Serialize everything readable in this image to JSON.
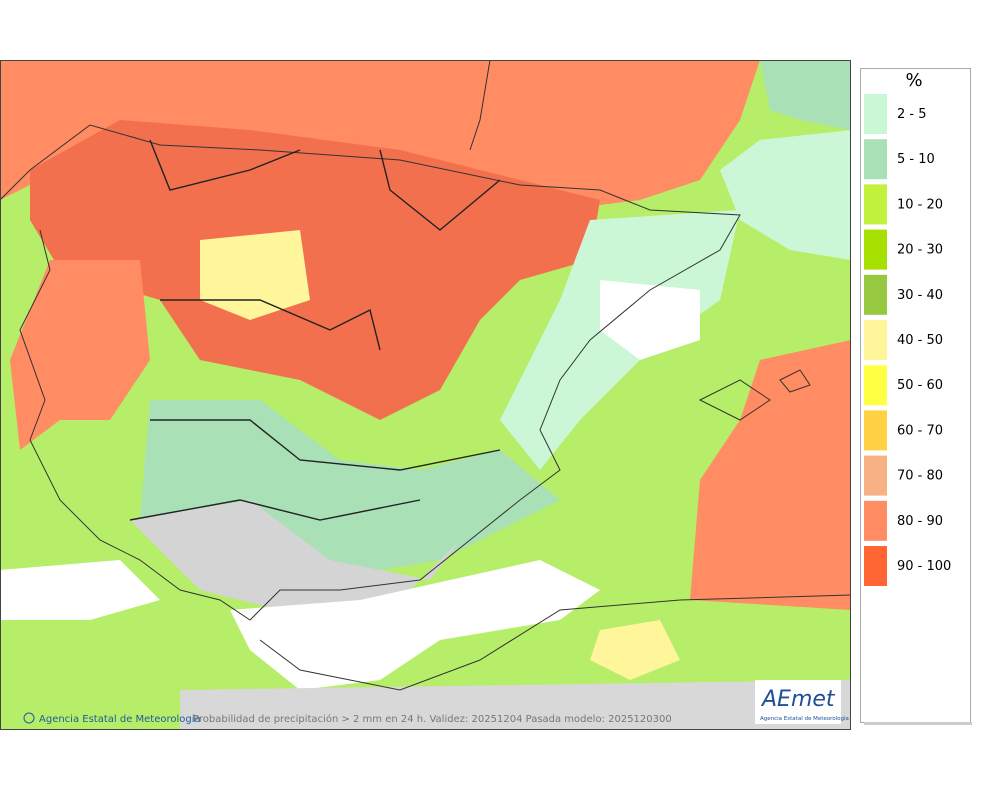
{
  "legend": {
    "title": "%",
    "items": [
      {
        "label": "2 - 5",
        "color": "#ccf7d6"
      },
      {
        "label": "5 - 10",
        "color": "#a9e0b6"
      },
      {
        "label": "10 - 20",
        "color": "#c2f23c"
      },
      {
        "label": "20 - 30",
        "color": "#a6e000"
      },
      {
        "label": "30 - 40",
        "color": "#97c940"
      },
      {
        "label": "40 - 50",
        "color": "#fff59a"
      },
      {
        "label": "50 - 60",
        "color": "#ffff44"
      },
      {
        "label": "60 - 70",
        "color": "#ffd145"
      },
      {
        "label": "70 - 80",
        "color": "#f7b184"
      },
      {
        "label": "80 - 90",
        "color": "#ff8c62"
      },
      {
        "label": "90 - 100",
        "color": "#ff6633"
      }
    ]
  },
  "footer": {
    "credit": "Agencia Estatal de Meteorología",
    "caption": "Probabilidad de precipitación > 2 mm en 24 h. Validez: 20251204 Pasada modelo: 2025120300"
  },
  "logo": {
    "name": "AEmet",
    "subtitle": "Agencia Estatal de Meteorología"
  }
}
